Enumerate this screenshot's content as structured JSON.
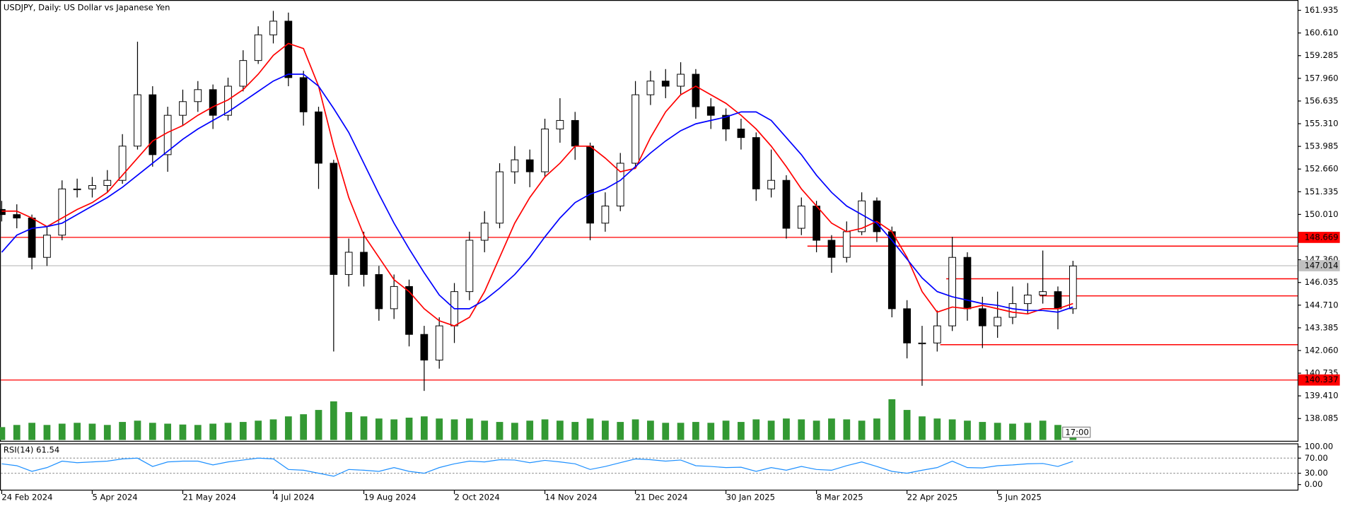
{
  "chart_data": [
    {
      "type": "candlestick",
      "title": "USDJPY, Daily:  US Dollar vs Japanese Yen",
      "server_time": "17:00",
      "x": [
        0,
        5,
        10,
        15,
        20,
        25,
        30,
        35,
        40,
        45,
        50,
        55,
        60,
        65,
        70,
        75,
        80,
        85,
        90,
        95,
        100,
        105,
        110,
        115,
        120,
        125,
        130,
        135,
        140,
        145,
        150,
        155,
        160,
        165,
        170,
        175,
        180,
        185,
        190,
        195,
        200,
        205,
        210,
        215,
        220,
        225,
        230,
        235,
        240,
        245,
        250,
        255,
        260,
        265,
        270,
        275,
        280,
        285,
        290,
        295,
        300,
        305,
        310,
        315,
        320,
        325,
        330,
        335,
        340,
        345,
        350,
        355
      ],
      "open": [
        150.3,
        150.0,
        149.8,
        147.5,
        148.8,
        151.5,
        151.5,
        151.7,
        152.0,
        154.0,
        157.0,
        153.5,
        155.8,
        156.6,
        157.3,
        155.8,
        157.5,
        159.0,
        160.5,
        161.3,
        158.0,
        156.0,
        153.0,
        146.5,
        147.8,
        146.5,
        144.5,
        145.8,
        143.0,
        141.5,
        143.5,
        145.5,
        148.5,
        149.5,
        152.5,
        153.2,
        152.5,
        155.0,
        155.5,
        154.0,
        149.5,
        150.5,
        153.0,
        157.0,
        157.8,
        157.5,
        158.2,
        156.3,
        155.8,
        155.0,
        154.5,
        151.5,
        152.0,
        149.2,
        150.5,
        148.5,
        147.5,
        149.0,
        150.8,
        149.0,
        144.5,
        142.5,
        142.5,
        143.5,
        147.5,
        144.5,
        143.5,
        144.0,
        144.8,
        145.3,
        145.5,
        144.5
      ],
      "high": [
        150.8,
        150.6,
        150.0,
        149.3,
        152.0,
        152.1,
        152.2,
        152.6,
        154.7,
        160.1,
        157.5,
        156.3,
        157.3,
        157.8,
        157.6,
        158.0,
        159.6,
        161.0,
        161.9,
        161.8,
        158.4,
        156.3,
        153.2,
        148.6,
        149.0,
        147.0,
        146.5,
        146.2,
        143.5,
        144.0,
        146.0,
        149.0,
        150.2,
        153.0,
        154.0,
        153.8,
        155.6,
        156.8,
        156.0,
        154.2,
        151.3,
        153.6,
        157.8,
        158.4,
        158.5,
        158.9,
        158.5,
        156.8,
        156.2,
        155.6,
        154.8,
        153.8,
        152.3,
        151.0,
        150.8,
        148.8,
        149.6,
        151.3,
        151.0,
        149.3,
        145.0,
        143.5,
        144.4,
        148.7,
        147.8,
        145.2,
        145.5,
        145.8,
        146.0,
        147.9,
        145.8,
        147.3
      ],
      "low": [
        149.6,
        149.2,
        146.8,
        147.0,
        148.5,
        151.0,
        151.0,
        151.3,
        151.8,
        153.8,
        152.8,
        152.5,
        155.2,
        156.0,
        155.0,
        155.5,
        157.2,
        158.8,
        160.0,
        157.5,
        155.2,
        151.5,
        142.0,
        145.8,
        145.8,
        143.8,
        143.9,
        142.3,
        139.7,
        141.0,
        142.5,
        145.0,
        147.8,
        149.2,
        151.8,
        151.6,
        152.2,
        154.2,
        153.2,
        148.5,
        149.0,
        150.2,
        152.8,
        156.4,
        156.8,
        157.0,
        155.6,
        155.0,
        154.3,
        153.8,
        150.8,
        151.0,
        148.6,
        148.8,
        147.8,
        146.6,
        147.2,
        148.8,
        148.4,
        144.0,
        141.6,
        140.0,
        142.0,
        143.2,
        143.8,
        142.2,
        142.8,
        143.6,
        144.2,
        144.8,
        143.3,
        144.2
      ],
      "close": [
        150.0,
        149.8,
        147.5,
        148.8,
        151.5,
        151.5,
        151.7,
        152.0,
        154.0,
        157.0,
        153.5,
        155.8,
        156.6,
        157.3,
        155.8,
        157.5,
        159.0,
        160.5,
        161.3,
        158.0,
        156.0,
        153.0,
        146.5,
        147.8,
        146.5,
        144.5,
        145.8,
        143.0,
        141.5,
        143.5,
        145.5,
        148.5,
        149.5,
        152.5,
        153.2,
        152.5,
        155.0,
        155.5,
        154.0,
        149.5,
        150.5,
        153.0,
        157.0,
        157.8,
        157.5,
        158.2,
        156.3,
        155.8,
        155.0,
        154.5,
        151.5,
        152.0,
        149.2,
        150.5,
        148.5,
        147.5,
        149.0,
        150.8,
        149.0,
        144.5,
        142.5,
        142.5,
        143.5,
        147.5,
        144.5,
        143.5,
        144.0,
        144.8,
        145.3,
        145.5,
        144.5,
        147.0
      ],
      "up_color": "#ffffff",
      "down_color": "#000000",
      "outline_color": "#000000",
      "series": [
        {
          "color": "#ff0000",
          "values": [
            150.2,
            150.2,
            149.8,
            149.3,
            149.8,
            150.3,
            150.7,
            151.3,
            152.3,
            153.3,
            154.3,
            154.8,
            155.2,
            155.8,
            156.3,
            156.7,
            157.3,
            158.2,
            159.3,
            160.0,
            159.7,
            157.5,
            154.0,
            151.0,
            148.8,
            147.5,
            146.2,
            145.5,
            144.5,
            143.8,
            143.5,
            144.0,
            145.5,
            147.5,
            149.5,
            151.0,
            152.2,
            153.0,
            154.0,
            154.0,
            153.3,
            152.5,
            152.7,
            154.5,
            156.0,
            157.0,
            157.5,
            157.0,
            156.5,
            155.8,
            155.0,
            154.0,
            152.8,
            151.5,
            150.5,
            149.5,
            149.0,
            149.2,
            149.6,
            149.0,
            147.5,
            145.5,
            144.3,
            144.6,
            144.5,
            144.7,
            144.5,
            144.3,
            144.2,
            144.5,
            144.5,
            144.8
          ]
        },
        {
          "color": "#0000ff",
          "values": [
            147.8,
            148.8,
            149.2,
            149.3,
            149.5,
            150.0,
            150.5,
            151.0,
            151.6,
            152.3,
            153.0,
            153.7,
            154.4,
            155.0,
            155.5,
            156.0,
            156.6,
            157.2,
            157.8,
            158.2,
            158.2,
            157.5,
            156.2,
            154.8,
            153.0,
            151.2,
            149.5,
            148.0,
            146.6,
            145.3,
            144.5,
            144.5,
            145.0,
            145.7,
            146.5,
            147.5,
            148.7,
            149.8,
            150.7,
            151.2,
            151.5,
            152.0,
            152.8,
            153.6,
            154.3,
            154.9,
            155.3,
            155.5,
            155.7,
            156.0,
            156.0,
            155.5,
            154.5,
            153.5,
            152.3,
            151.3,
            150.5,
            150.0,
            149.5,
            148.5,
            147.4,
            146.3,
            145.5,
            145.2,
            145.0,
            144.8,
            144.7,
            144.5,
            144.4,
            144.4,
            144.3,
            144.6
          ]
        }
      ],
      "volume": {
        "color": "#339933",
        "ylim": [
          0,
          100
        ],
        "values": [
          30,
          35,
          40,
          35,
          38,
          40,
          38,
          35,
          42,
          45,
          40,
          38,
          36,
          35,
          38,
          40,
          42,
          45,
          48,
          55,
          60,
          70,
          90,
          65,
          55,
          50,
          48,
          52,
          55,
          50,
          48,
          50,
          45,
          42,
          40,
          45,
          48,
          45,
          42,
          50,
          45,
          42,
          48,
          45,
          40,
          40,
          42,
          40,
          45,
          42,
          48,
          45,
          50,
          48,
          45,
          50,
          48,
          45,
          50,
          95,
          70,
          55,
          50,
          48,
          45,
          42,
          40,
          38,
          40,
          45,
          35,
          30
        ]
      },
      "price_tags": [
        {
          "value": 148.669,
          "color": "#ff0000"
        },
        {
          "value": 140.337,
          "color": "#ff0000"
        },
        {
          "value": 147.014,
          "color": "#c0c0c0"
        }
      ],
      "levels": [
        {
          "value": 148.16,
          "from": 267,
          "color": "#ff0000"
        },
        {
          "value": 146.25,
          "from": 313,
          "color": "#ff0000"
        },
        {
          "value": 145.25,
          "from": 344,
          "color": "#ff0000"
        },
        {
          "value": 142.4,
          "from": 311,
          "color": "#ff0000"
        }
      ],
      "xlim": [
        0,
        429
      ],
      "xticks": [
        {
          "value": 0,
          "label": "24 Feb 2024"
        },
        {
          "value": 30,
          "label": "5 Apr 2024"
        },
        {
          "value": 60,
          "label": "21 May 2024"
        },
        {
          "value": 90,
          "label": "4 Jul 2024"
        },
        {
          "value": 120,
          "label": "19 Aug 2024"
        },
        {
          "value": 150,
          "label": "2 Oct 2024"
        },
        {
          "value": 180,
          "label": "14 Nov 2024"
        },
        {
          "value": 210,
          "label": "21 Dec 2024"
        },
        {
          "value": 240,
          "label": "30 Jan 2025"
        },
        {
          "value": 270,
          "label": "8 Mar 2025"
        },
        {
          "value": 300,
          "label": "22 Apr 2025"
        },
        {
          "value": 330,
          "label": "5 Jun 2025"
        }
      ],
      "ylim": [
        136.784,
        162.536
      ],
      "yticks": [
        {
          "value": 161.935,
          "label": "161.935"
        },
        {
          "value": 160.61,
          "label": "160.610"
        },
        {
          "value": 159.285,
          "label": "159.285"
        },
        {
          "value": 157.96,
          "label": "157.960"
        },
        {
          "value": 156.635,
          "label": "156.635"
        },
        {
          "value": 155.31,
          "label": "155.310"
        },
        {
          "value": 153.985,
          "label": "153.985"
        },
        {
          "value": 152.66,
          "label": "152.660"
        },
        {
          "value": 151.335,
          "label": "151.335"
        },
        {
          "value": 150.01,
          "label": "150.010"
        },
        {
          "value": 147.36,
          "label": "147.360"
        },
        {
          "value": 146.035,
          "label": "146.035"
        },
        {
          "value": 144.71,
          "label": "144.710"
        },
        {
          "value": 143.385,
          "label": "143.385"
        },
        {
          "value": 142.06,
          "label": "142.060"
        },
        {
          "value": 140.735,
          "label": "140.735"
        },
        {
          "value": 139.41,
          "label": "139.410"
        },
        {
          "value": 138.085,
          "label": "138.085"
        }
      ]
    },
    {
      "type": "line",
      "title": "RSI(14) 61.54",
      "color": "#1e90ff",
      "values": [
        55,
        50,
        35,
        45,
        62,
        58,
        60,
        62,
        68,
        70,
        48,
        60,
        62,
        62,
        52,
        60,
        65,
        70,
        68,
        40,
        38,
        30,
        22,
        40,
        38,
        35,
        45,
        35,
        30,
        45,
        55,
        62,
        60,
        66,
        65,
        58,
        64,
        60,
        55,
        40,
        48,
        58,
        68,
        66,
        62,
        65,
        50,
        48,
        45,
        46,
        35,
        45,
        38,
        48,
        40,
        38,
        50,
        60,
        48,
        35,
        30,
        38,
        45,
        62,
        45,
        44,
        50,
        52,
        55,
        56,
        48,
        61.54
      ],
      "ylim": [
        0,
        100
      ],
      "yticks": [
        {
          "value": 100,
          "label": "100.00"
        },
        {
          "value": 70,
          "label": "70.00"
        },
        {
          "value": 30,
          "label": "30.00"
        },
        {
          "value": 0,
          "label": "0.00"
        }
      ],
      "levels": [
        70,
        30
      ]
    }
  ]
}
